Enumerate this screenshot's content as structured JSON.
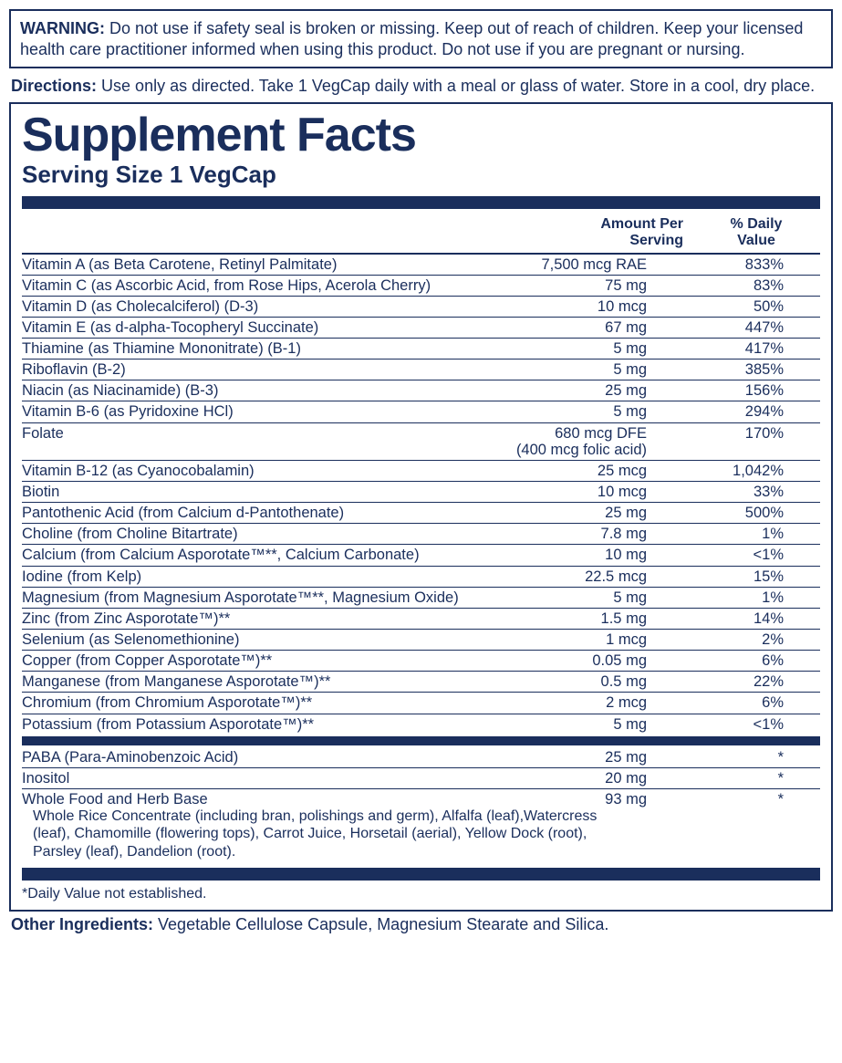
{
  "colors": {
    "primary": "#1a2e5c",
    "background": "#ffffff"
  },
  "warning": {
    "label": "WARNING:",
    "text": "Do not use if safety seal is broken or missing. Keep out of reach of children. Keep your licensed health care practitioner informed when using this product. Do not use if you are pregnant or nursing."
  },
  "directions": {
    "label": "Directions:",
    "text": "Use only as directed. Take 1 VegCap daily with a meal or glass of water. Store in a cool, dry place."
  },
  "facts": {
    "title": "Supplement Facts",
    "serving": "Serving Size 1 VegCap",
    "header_amount": "Amount Per Serving",
    "header_dv": "% Daily Value"
  },
  "nutrients_main": [
    {
      "name": "Vitamin A (as Beta Carotene, Retinyl Palmitate)",
      "amount": "7,500 mcg RAE",
      "dv": "833%"
    },
    {
      "name": "Vitamin C (as Ascorbic Acid, from Rose Hips, Acerola Cherry)",
      "amount": "75 mg",
      "dv": "83%"
    },
    {
      "name": "Vitamin D (as Cholecalciferol) (D-3)",
      "amount": "10 mcg",
      "dv": "50%"
    },
    {
      "name": "Vitamin E (as d-alpha-Tocopheryl Succinate)",
      "amount": "67 mg",
      "dv": "447%"
    },
    {
      "name": "Thiamine (as Thiamine Mononitrate) (B-1)",
      "amount": "5 mg",
      "dv": "417%"
    },
    {
      "name": "Riboflavin (B-2)",
      "amount": "5 mg",
      "dv": "385%"
    },
    {
      "name": "Niacin (as Niacinamide) (B-3)",
      "amount": "25 mg",
      "dv": "156%"
    },
    {
      "name": "Vitamin B-6 (as Pyridoxine HCl)",
      "amount": "5 mg",
      "dv": "294%"
    },
    {
      "name": "Folate",
      "amount": "680 mcg DFE",
      "dv": "170%",
      "amount_sub": "(400 mcg folic acid)"
    },
    {
      "name": "Vitamin B-12 (as Cyanocobalamin)",
      "amount": "25 mcg",
      "dv": "1,042%"
    },
    {
      "name": "Biotin",
      "amount": "10 mcg",
      "dv": "33%"
    },
    {
      "name": "Pantothenic Acid (from Calcium d-Pantothenate)",
      "amount": "25 mg",
      "dv": "500%"
    },
    {
      "name": "Choline (from Choline Bitartrate)",
      "amount": "7.8 mg",
      "dv": "1%"
    },
    {
      "name": "Calcium (from Calcium Asporotate™**, Calcium Carbonate)",
      "amount": "10 mg",
      "dv": "<1%"
    },
    {
      "name": "Iodine (from Kelp)",
      "amount": "22.5 mcg",
      "dv": "15%"
    },
    {
      "name": "Magnesium (from Magnesium Asporotate™**, Magnesium Oxide)",
      "amount": "5 mg",
      "dv": "1%"
    },
    {
      "name": "Zinc (from Zinc Asporotate™)**",
      "amount": "1.5 mg",
      "dv": "14%"
    },
    {
      "name": "Selenium (as Selenomethionine)",
      "amount": "1 mcg",
      "dv": "2%"
    },
    {
      "name": "Copper (from Copper Asporotate™)**",
      "amount": "0.05 mg",
      "dv": "6%"
    },
    {
      "name": "Manganese (from Manganese Asporotate™)**",
      "amount": "0.5 mg",
      "dv": "22%"
    },
    {
      "name": "Chromium (from Chromium Asporotate™)**",
      "amount": "2 mcg",
      "dv": "6%"
    },
    {
      "name": "Potassium (from Potassium Asporotate™)**",
      "amount": "5 mg",
      "dv": "<1%"
    }
  ],
  "nutrients_secondary": [
    {
      "name": "PABA (Para-Aminobenzoic Acid)",
      "amount": "25 mg",
      "dv": "*"
    },
    {
      "name": "Inositol",
      "amount": "20 mg",
      "dv": "*"
    }
  ],
  "whole_food": {
    "name": "Whole Food and Herb Base",
    "amount": "93 mg",
    "dv": "*",
    "sub": "Whole Rice Concentrate (including bran, polishings and germ), Alfalfa (leaf),Watercress (leaf), Chamomille (flowering tops), Carrot Juice, Horsetail (aerial), Yellow Dock (root), Parsley (leaf), Dandelion (root)."
  },
  "footnote": "*Daily Value not established.",
  "other": {
    "label": "Other Ingredients:",
    "text": "Vegetable Cellulose Capsule, Magnesium Stearate and Silica."
  }
}
